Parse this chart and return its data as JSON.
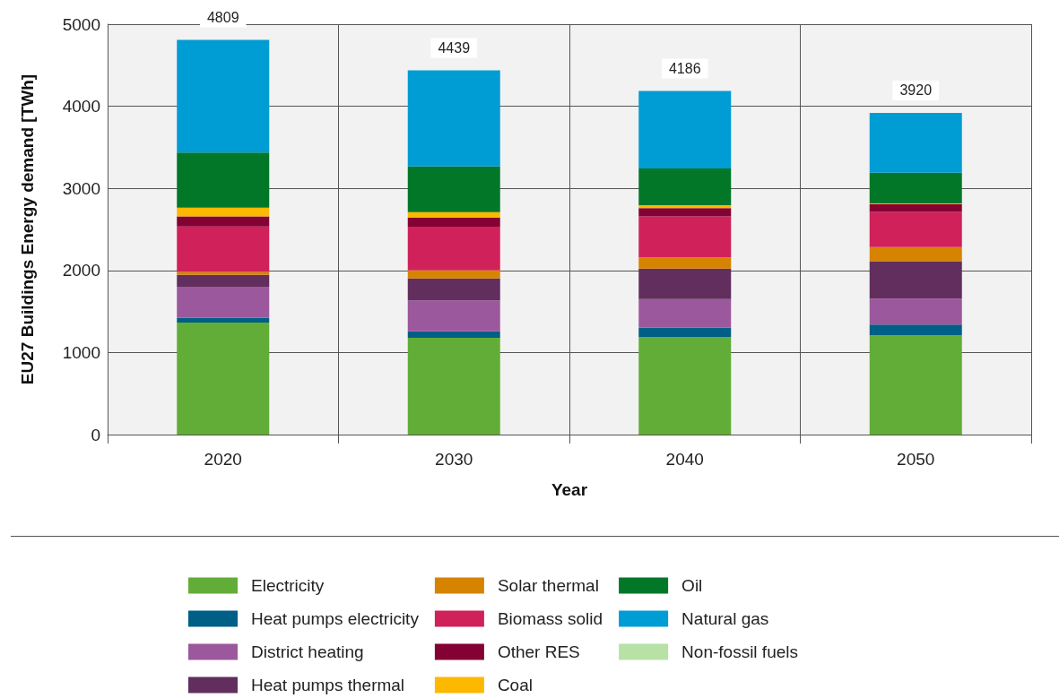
{
  "chart_data": {
    "type": "bar",
    "stacked": true,
    "xlabel": "Year",
    "ylabel": "EU27 Buildings Energy demand [TWh]",
    "categories": [
      "2020",
      "2030",
      "2040",
      "2050"
    ],
    "series": [
      {
        "name": "Electricity",
        "color": "#62ad37",
        "values": [
          1364,
          1180,
          1191,
          1209
        ]
      },
      {
        "name": "Heat pumps electricity",
        "color": "#005f86",
        "values": [
          58,
          77,
          110,
          132
        ]
      },
      {
        "name": "District heating",
        "color": "#9c589c",
        "values": [
          378,
          379,
          349,
          317
        ]
      },
      {
        "name": "Heat pumps thermal",
        "color": "#612e5e",
        "values": [
          145,
          266,
          372,
          455
        ]
      },
      {
        "name": "Solar thermal",
        "color": "#d68300",
        "values": [
          37,
          98,
          138,
          171
        ]
      },
      {
        "name": "Biomass solid",
        "color": "#d0215a",
        "values": [
          553,
          532,
          499,
          430
        ]
      },
      {
        "name": "Other RES",
        "color": "#830133",
        "values": [
          123,
          109,
          99,
          91
        ]
      },
      {
        "name": "Coal",
        "color": "#fcb900",
        "values": [
          106,
          69,
          36,
          11
        ]
      },
      {
        "name": "Oil",
        "color": "#027728",
        "values": [
          672,
          558,
          448,
          375
        ]
      },
      {
        "name": "Natural gas",
        "color": "#009cd4",
        "values": [
          1373,
          1171,
          944,
          729
        ]
      },
      {
        "name": "Non-fossil fuels",
        "color": "#b8e1a6",
        "values": [
          0,
          0,
          0,
          0
        ]
      }
    ],
    "totals": [
      "4809",
      "4439",
      "4186",
      "3920"
    ],
    "ylim": [
      0,
      5000
    ],
    "yticks": [
      0,
      1000,
      2000,
      3000,
      4000,
      5000
    ],
    "grid": true,
    "legend": "bottom"
  }
}
